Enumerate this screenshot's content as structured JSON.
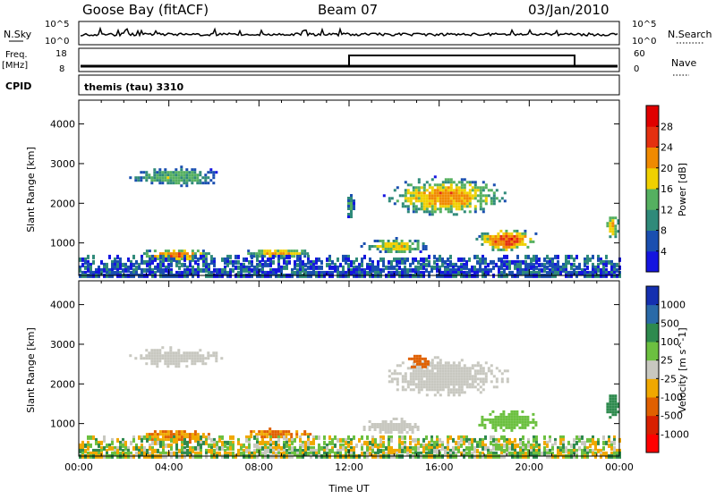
{
  "header": {
    "station": "Goose Bay (fitACF)",
    "beam": "Beam 07",
    "date": "03/Jan/2010"
  },
  "noise_panel": {
    "left_label": "N.Sky",
    "right_label": "N.Search",
    "left_ticks": [
      "10^5",
      "10^0"
    ],
    "right_ticks": [
      "10^5",
      "10^0"
    ]
  },
  "freq_panel": {
    "left_label_line1": "Freq.",
    "left_label_line2": "[MHz]",
    "right_label": "Nave",
    "left_ticks": [
      "18",
      "8"
    ],
    "right_ticks": [
      "60",
      "0"
    ]
  },
  "cpid_panel": {
    "label": "CPID",
    "text": "themis (tau) 3310"
  },
  "colors": {
    "power_scale": [
      "#1515e0",
      "#1a4fb0",
      "#2f8a7a",
      "#55b060",
      "#f0d000",
      "#f08a00",
      "#e43010",
      "#e00000"
    ],
    "velocity_scale": [
      "#1530b0",
      "#2a6aa8",
      "#2e8a4e",
      "#6cc040",
      "#c8c8c0",
      "#f0a800",
      "#e06000",
      "#d82000",
      "#ff0000"
    ]
  },
  "chart_data": [
    {
      "type": "heatmap",
      "title": "",
      "xlabel": "",
      "ylabel": "Slant Range [km]",
      "xlim": [
        "00:00",
        "24:00"
      ],
      "ylim": [
        180,
        4600
      ],
      "y_ticks": [
        "1000",
        "2000",
        "3000",
        "4000"
      ],
      "colorbar": {
        "label": "Power [dB]",
        "range": [
          0,
          32
        ],
        "ticks": [
          "4",
          "8",
          "12",
          "16",
          "20",
          "24",
          "28"
        ]
      },
      "regions": [
        {
          "t_start": 2.0,
          "t_end": 6.5,
          "range_start": 2450,
          "range_end": 2950,
          "peak_power": 14
        },
        {
          "t_start": 11.8,
          "t_end": 12.2,
          "range_start": 1600,
          "range_end": 2300,
          "peak_power": 12
        },
        {
          "t_start": 13.5,
          "t_end": 19.0,
          "range_start": 1700,
          "range_end": 2700,
          "peak_power": 22
        },
        {
          "t_start": 17.5,
          "t_end": 20.5,
          "range_start": 800,
          "range_end": 1400,
          "peak_power": 26
        },
        {
          "t_start": 2.5,
          "t_end": 6.0,
          "range_start": 550,
          "range_end": 900,
          "peak_power": 24
        },
        {
          "t_start": 7.0,
          "t_end": 10.5,
          "range_start": 650,
          "range_end": 900,
          "peak_power": 20
        },
        {
          "t_start": 12.5,
          "t_end": 15.5,
          "range_start": 750,
          "range_end": 1150,
          "peak_power": 18
        },
        {
          "t_start": 23.3,
          "t_end": 24.0,
          "range_start": 1100,
          "range_end": 1800,
          "peak_power": 20
        },
        {
          "t_start": 0.0,
          "t_end": 24.0,
          "range_start": 180,
          "range_end": 700,
          "peak_power": 10
        }
      ]
    },
    {
      "type": "heatmap",
      "title": "",
      "xlabel": "Time UT",
      "ylabel": "Slant Range [km]",
      "xlim": [
        "00:00",
        "24:00"
      ],
      "ylim": [
        180,
        4600
      ],
      "x_ticks": [
        "00:00",
        "04:00",
        "08:00",
        "12:00",
        "16:00",
        "20:00",
        "00:00"
      ],
      "y_ticks": [
        "1000",
        "2000",
        "3000",
        "4000"
      ],
      "colorbar": {
        "label": "Velocity [m s^-1]",
        "ticks": [
          "1000",
          "500",
          "100",
          "25",
          "-25",
          "-100",
          "-500",
          "-1000"
        ]
      },
      "regions": [
        {
          "t_start": 2.0,
          "t_end": 6.5,
          "range_start": 2450,
          "range_end": 2950,
          "velocity": 0
        },
        {
          "t_start": 13.5,
          "t_end": 19.0,
          "range_start": 1700,
          "range_end": 2700,
          "velocity": 0
        },
        {
          "t_start": 14.5,
          "t_end": 15.5,
          "range_start": 2400,
          "range_end": 2800,
          "velocity": -150
        },
        {
          "t_start": 17.5,
          "t_end": 20.5,
          "range_start": 800,
          "range_end": 1400,
          "velocity": 60
        },
        {
          "t_start": 2.5,
          "t_end": 6.0,
          "range_start": 550,
          "range_end": 900,
          "velocity": -100
        },
        {
          "t_start": 7.0,
          "t_end": 10.5,
          "range_start": 650,
          "range_end": 900,
          "velocity": -100
        },
        {
          "t_start": 12.5,
          "t_end": 15.5,
          "range_start": 750,
          "range_end": 1150,
          "velocity": 0
        },
        {
          "t_start": 23.3,
          "t_end": 24.0,
          "range_start": 1100,
          "range_end": 1800,
          "velocity": 150
        },
        {
          "t_start": 0.0,
          "t_end": 24.0,
          "range_start": 180,
          "range_end": 700,
          "velocity": 50
        }
      ]
    }
  ]
}
